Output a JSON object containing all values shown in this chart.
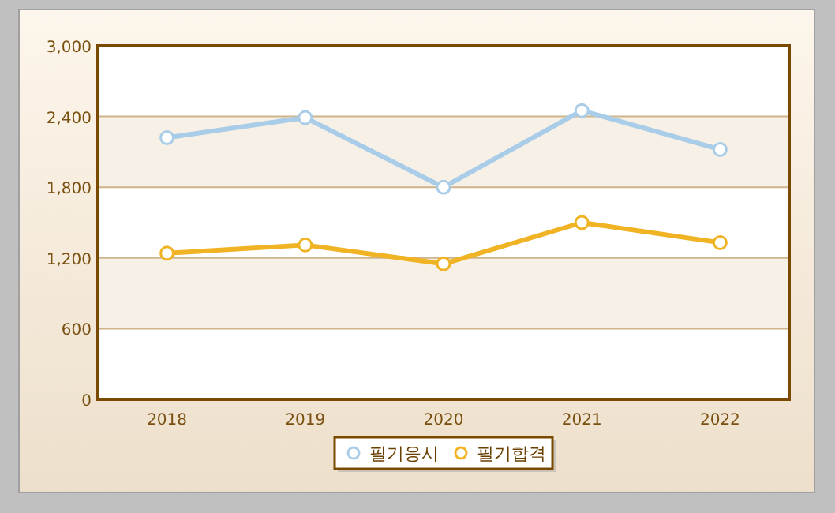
{
  "chart_data": {
    "type": "line",
    "categories": [
      "2018",
      "2019",
      "2020",
      "2021",
      "2022"
    ],
    "series": [
      {
        "name": "필기응시",
        "color": "#a9cde8",
        "values": [
          2220,
          2390,
          1800,
          2450,
          2120
        ]
      },
      {
        "name": "필기합격",
        "color": "#f0b323",
        "values": [
          1240,
          1310,
          1150,
          1500,
          1330
        ]
      }
    ],
    "ylim": [
      0,
      3000
    ],
    "yticks": [
      {
        "value": 0,
        "label": "0"
      },
      {
        "value": 600,
        "label": "600"
      },
      {
        "value": 1200,
        "label": "1,200"
      },
      {
        "value": 1800,
        "label": "1,800"
      },
      {
        "value": 2400,
        "label": "2,400"
      },
      {
        "value": 3000,
        "label": "3,000"
      }
    ],
    "grid": "y",
    "legend": "bottom",
    "marker": "circle",
    "line_style": "solid"
  }
}
